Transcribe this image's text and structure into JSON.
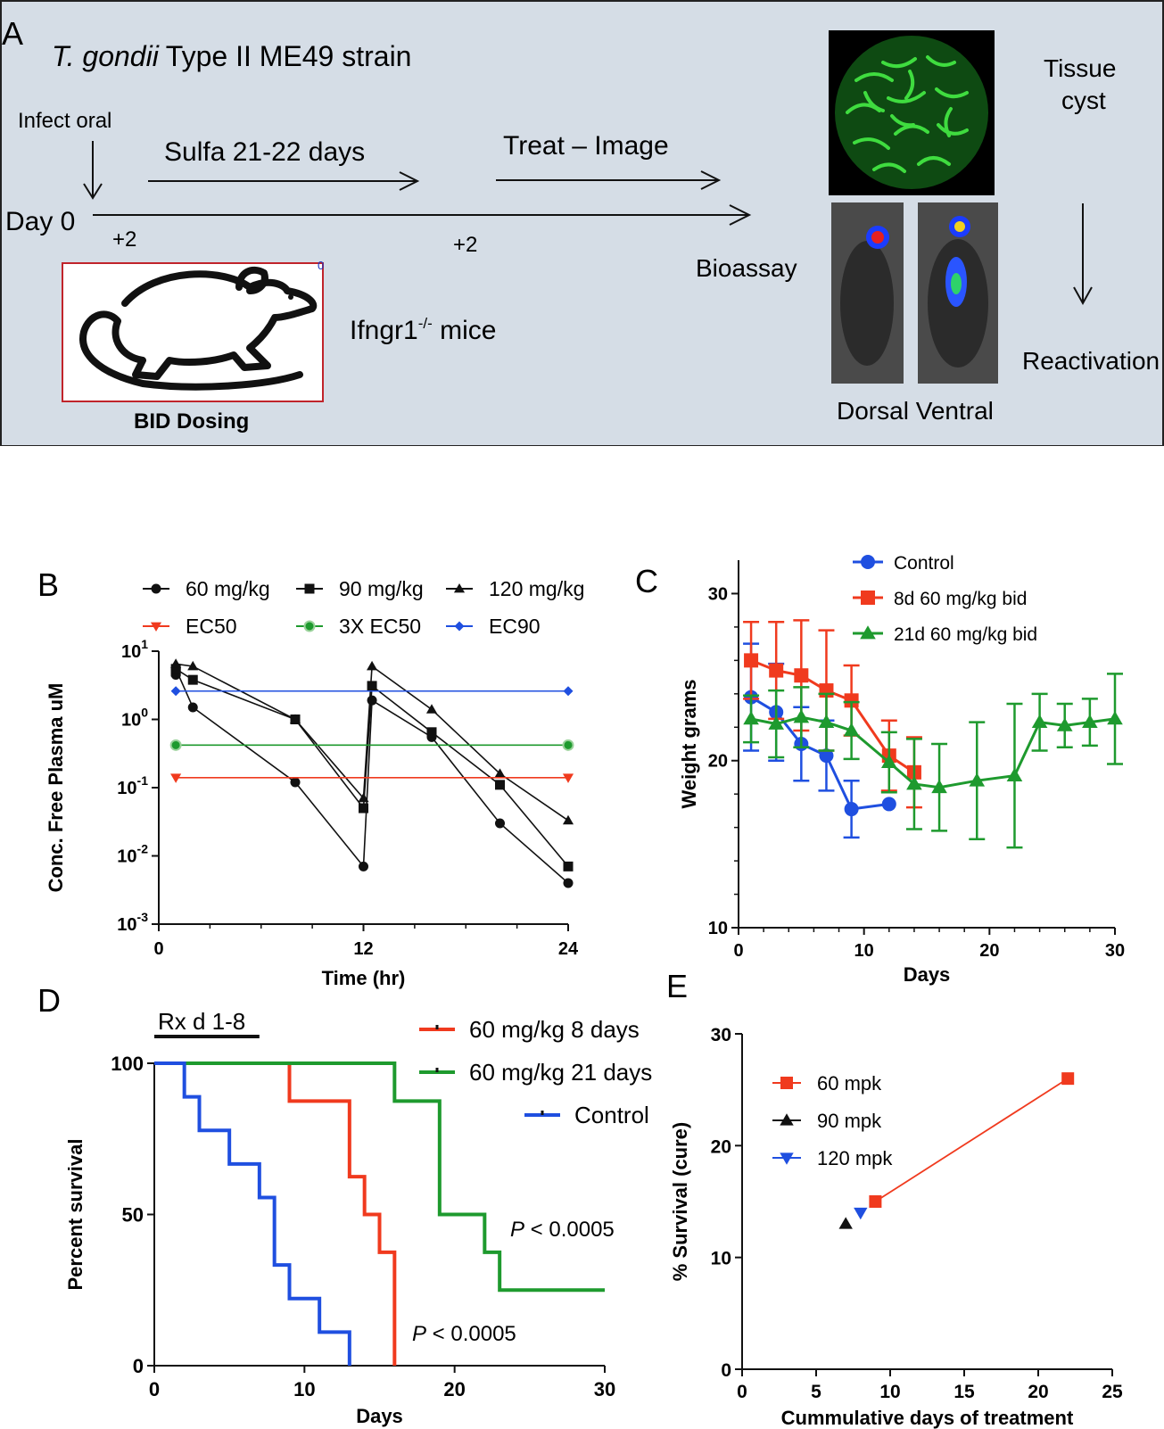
{
  "panels": {
    "A": {
      "label": "A",
      "strain_italic": "T. gondii",
      "strain_rest": "Type II ME49 strain",
      "infect": "Infect oral",
      "day0": "Day 0",
      "sulfa": "Sulfa 21-22 days",
      "treat": "Treat – Image",
      "plus2a": "+2",
      "plus2b": "+2",
      "mice_base": "Ifngr1",
      "mice_sup": "-/-",
      "mice_rest": " mice",
      "badge": "0",
      "bid": "BID Dosing",
      "bioassay": "Bioassay",
      "tissue1": "Tissue",
      "tissue2": "cyst",
      "reactivation": "Reactivation",
      "dorsal_ventral": "Dorsal Ventral"
    },
    "D": {
      "rx": "Rx d 1-8",
      "p1": "P",
      "p1rest": " < 0.0005",
      "p2": "P",
      "p2rest": " < 0.0005"
    }
  },
  "colors": {
    "panel_bg": "#d5dde6",
    "red": "#f03a1e",
    "green": "#1e9a2e",
    "blue": "#1f4fe0",
    "black": "#111111"
  },
  "chart_data": [
    {
      "panel": "B",
      "type": "line",
      "xlabel": "Time (hr)",
      "ylabel": "Conc. Free Plasma uM",
      "xlim": [
        0,
        24
      ],
      "ylim_log10": [
        -3,
        1
      ],
      "yscale": "log",
      "xticks": [
        0,
        12,
        24
      ],
      "ytick_base": "10",
      "ytick_exps": [
        "-3",
        "-2",
        "-1",
        "0",
        "1"
      ],
      "legend_position": "top",
      "series": [
        {
          "name": "60 mg/kg",
          "marker": "circle",
          "color": "#111111",
          "x": [
            1,
            1,
            2,
            8,
            12,
            12.5,
            16,
            20,
            24
          ],
          "y": [
            4.5,
            5.5,
            1.5,
            0.12,
            0.007,
            1.9,
            0.55,
            0.03,
            0.004
          ]
        },
        {
          "name": "90 mg/kg",
          "marker": "square",
          "color": "#111111",
          "x": [
            1,
            1,
            2,
            8,
            12,
            12.5,
            16,
            20,
            24
          ],
          "y": [
            5.0,
            5.5,
            3.8,
            1.0,
            0.05,
            3.1,
            0.65,
            0.11,
            0.007
          ]
        },
        {
          "name": "120 mg/kg",
          "marker": "triangle",
          "color": "#111111",
          "x": [
            1,
            2,
            8,
            12,
            12.5,
            16,
            20,
            24
          ],
          "y": [
            6.5,
            6.0,
            1.0,
            0.07,
            6.0,
            1.4,
            0.16,
            0.033
          ]
        },
        {
          "name": "EC50",
          "marker": "triangle-down",
          "color": "#f03a1e",
          "x": [
            1,
            24
          ],
          "y": [
            0.14,
            0.14
          ]
        },
        {
          "name": "3X EC50",
          "marker": "circle-ring",
          "color": "#1e9a2e",
          "x": [
            1,
            24
          ],
          "y": [
            0.42,
            0.42
          ]
        },
        {
          "name": "EC90",
          "marker": "diamond",
          "color": "#1f4fe0",
          "x": [
            1,
            24
          ],
          "y": [
            2.6,
            2.6
          ]
        }
      ]
    },
    {
      "panel": "C",
      "type": "line",
      "xlabel": "Days",
      "ylabel": "Weight grams",
      "xlim": [
        0,
        30
      ],
      "ylim": [
        10,
        32
      ],
      "xticks": [
        0,
        10,
        20,
        30
      ],
      "yticks": [
        10,
        20,
        30
      ],
      "legend_position": "top",
      "series": [
        {
          "name": "Control",
          "marker": "circle",
          "color": "#1f4fe0",
          "x": [
            1,
            3,
            5,
            7,
            9,
            12
          ],
          "y": [
            23.8,
            22.9,
            21.0,
            20.3,
            17.1,
            17.4
          ],
          "err": [
            3.2,
            2.9,
            2.2,
            2.1,
            1.7,
            0
          ]
        },
        {
          "name": "8d 60 mg/kg bid",
          "marker": "square",
          "color": "#f03a1e",
          "x": [
            1,
            3,
            5,
            7,
            9,
            12,
            14
          ],
          "y": [
            26.0,
            25.4,
            25.1,
            24.2,
            23.6,
            20.3,
            19.3
          ],
          "err": [
            2.3,
            2.9,
            3.3,
            3.6,
            2.1,
            2.1,
            2.1
          ]
        },
        {
          "name": "21d 60 mg/kg bid",
          "marker": "triangle",
          "color": "#1e9a2e",
          "x": [
            1,
            3,
            5,
            7,
            9,
            12,
            14,
            16,
            19,
            22,
            24,
            26,
            28,
            30
          ],
          "y": [
            22.5,
            22.2,
            22.6,
            22.3,
            21.8,
            19.9,
            18.6,
            18.4,
            18.8,
            19.1,
            22.3,
            22.1,
            22.3,
            22.5
          ],
          "err": [
            1.4,
            2.0,
            1.8,
            1.7,
            1.7,
            1.8,
            2.7,
            2.6,
            3.5,
            4.3,
            1.7,
            1.3,
            1.4,
            2.7
          ]
        }
      ]
    },
    {
      "panel": "D",
      "type": "line",
      "xlabel": "Days",
      "ylabel": "Percent survival",
      "xlim": [
        0,
        30
      ],
      "ylim": [
        0,
        100
      ],
      "xticks": [
        0,
        10,
        20,
        30
      ],
      "yticks": [
        0,
        50,
        100
      ],
      "step": true,
      "legend_position": "top-right",
      "series": [
        {
          "name": "60 mg/kg  8 days",
          "color": "#f03a1e",
          "x": [
            0,
            9,
            13,
            14,
            15,
            16
          ],
          "y": [
            100,
            87.5,
            62.5,
            50,
            37.5,
            0
          ]
        },
        {
          "name": "60 mg/kg 21 days",
          "color": "#1e9a2e",
          "x": [
            0,
            16,
            19,
            22,
            23,
            30
          ],
          "y": [
            100,
            87.5,
            50,
            37.5,
            25,
            25
          ]
        },
        {
          "name": "Control",
          "color": "#1f4fe0",
          "x": [
            0,
            2,
            3,
            5,
            7,
            8,
            9,
            11,
            13
          ],
          "y": [
            100,
            88.9,
            77.8,
            66.7,
            55.6,
            33.3,
            22.2,
            11.1,
            0
          ]
        }
      ]
    },
    {
      "panel": "E",
      "type": "scatter",
      "xlabel": "Cummulative days of treatment",
      "ylabel": "% Survival (cure)",
      "xlim": [
        0,
        25
      ],
      "ylim": [
        0,
        30
      ],
      "xticks": [
        0,
        5,
        10,
        15,
        20,
        25
      ],
      "yticks": [
        0,
        10,
        20,
        30
      ],
      "legend_position": "top-left",
      "series": [
        {
          "name": "60 mpk",
          "marker": "square",
          "color": "#f03a1e",
          "x": [
            9,
            22
          ],
          "y": [
            15,
            26
          ],
          "line": true
        },
        {
          "name": "90 mpk",
          "marker": "triangle",
          "color": "#111111",
          "x": [
            7
          ],
          "y": [
            13
          ]
        },
        {
          "name": "120 mpk",
          "marker": "triangle-down",
          "color": "#1f4fe0",
          "x": [
            8
          ],
          "y": [
            14
          ]
        }
      ]
    }
  ]
}
